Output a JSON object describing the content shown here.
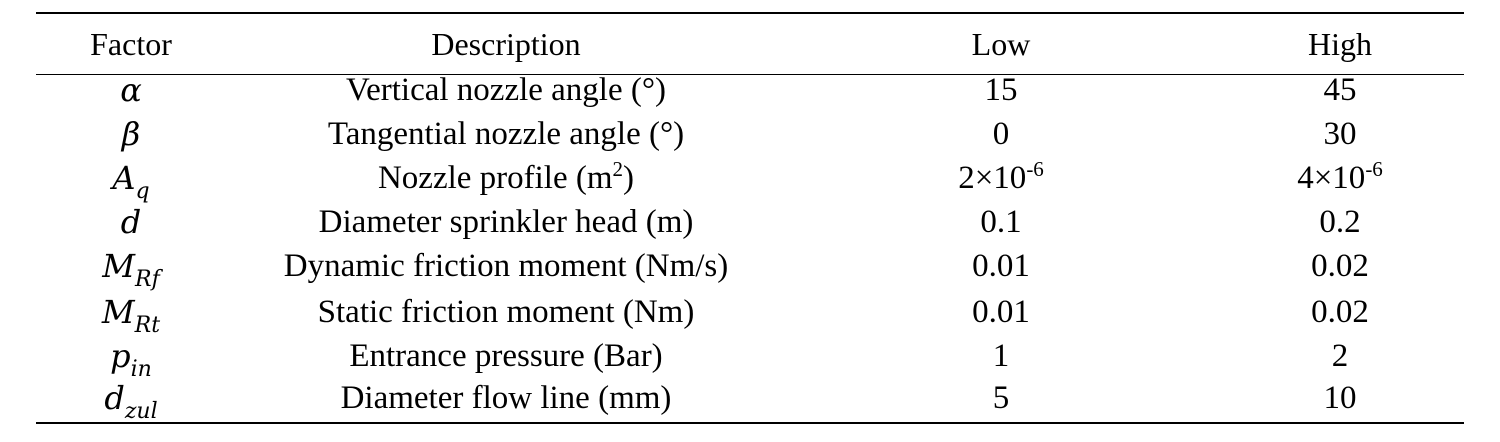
{
  "table": {
    "headers": [
      "Factor",
      "Description",
      "Low",
      "High"
    ],
    "rows": [
      {
        "sym": "α",
        "sub": "",
        "desc": "Vertical nozzle angle (°)",
        "low": "15",
        "high": "45"
      },
      {
        "sym": "β",
        "sub": "",
        "desc": "Tangential nozzle angle (°)",
        "low": "0",
        "high": "30"
      },
      {
        "sym": "A",
        "sub": "q",
        "desc_pre": "Nozzle profile (m",
        "desc_sup": "2",
        "desc_post": ")",
        "low_base": "2×10",
        "low_exp": "-6",
        "high_base": "4×10",
        "high_exp": "-6"
      },
      {
        "sym": "d",
        "sub": "",
        "desc": "Diameter sprinkler head (m)",
        "low": "0.1",
        "high": "0.2"
      },
      {
        "sym": "M",
        "sub": "Rf",
        "desc": "Dynamic friction moment (Nm/s)",
        "low": "0.01",
        "high": "0.02"
      },
      {
        "sym": "M",
        "sub": "Rt",
        "desc": "Static friction moment (Nm)",
        "low": "0.01",
        "high": "0.02"
      },
      {
        "sym": "p",
        "sub": "in",
        "desc": "Entrance pressure (Bar)",
        "low": "1",
        "high": "2"
      },
      {
        "sym": "d",
        "sub": "zul",
        "desc": "Diameter flow line (mm)",
        "low": "5",
        "high": "10"
      }
    ]
  }
}
